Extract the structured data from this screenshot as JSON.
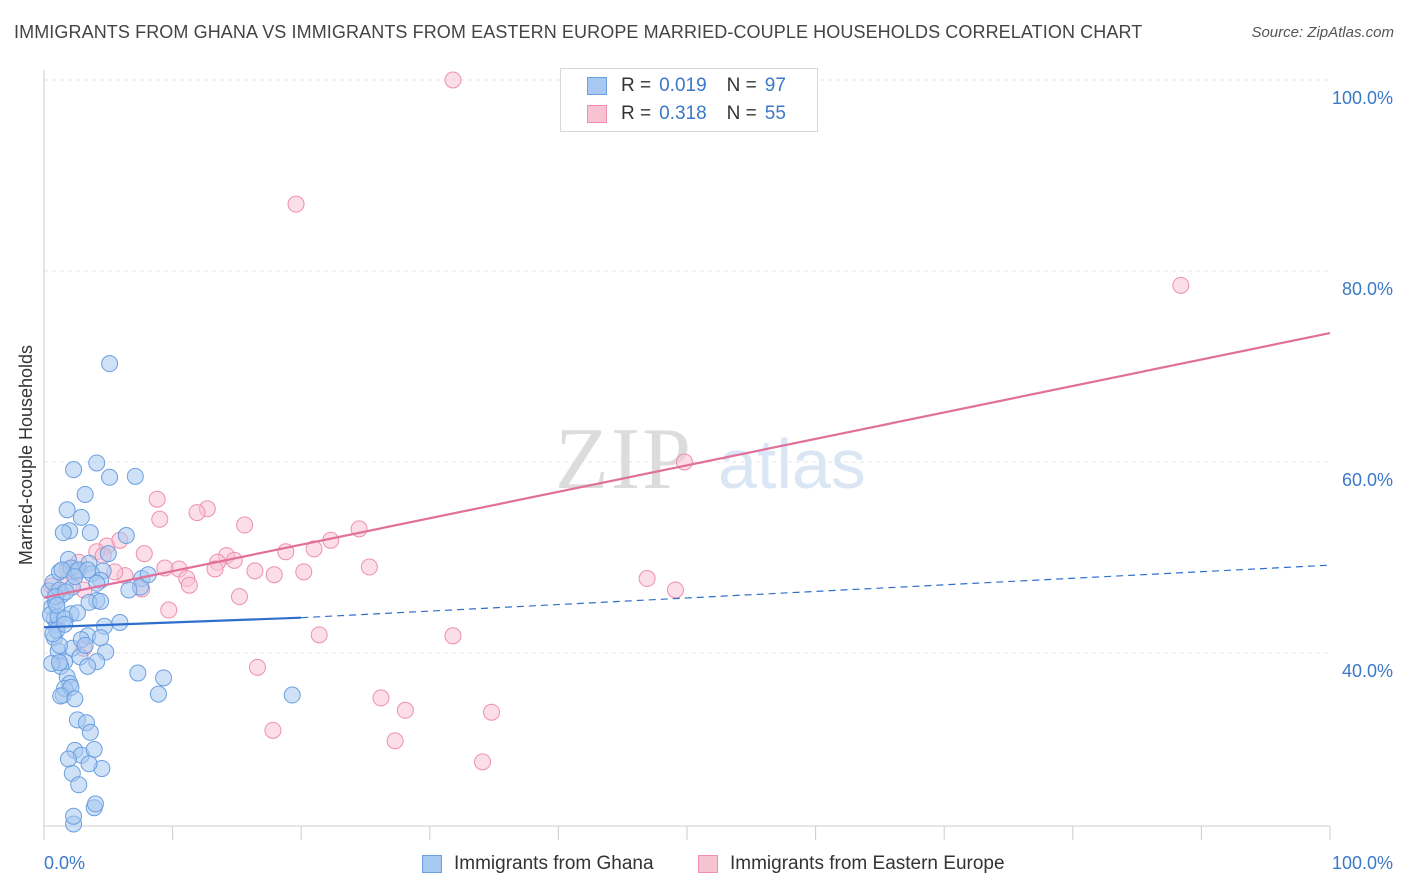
{
  "title": "IMMIGRANTS FROM GHANA VS IMMIGRANTS FROM EASTERN EUROPE MARRIED-COUPLE HOUSEHOLDS CORRELATION CHART",
  "source": "Source: ZipAtlas.com",
  "watermark": {
    "part1": "ZIP",
    "part2": "atlas"
  },
  "legend": {
    "r_label": "R =",
    "n_label": "N =",
    "rows": [
      {
        "r": "0.019",
        "n": "97",
        "color": "#8ab4e8"
      },
      {
        "r": "0.318",
        "n": "55",
        "color": "#f4a3bd"
      }
    ]
  },
  "colors": {
    "ghana_fill": "#a7c8f0",
    "ghana_stroke": "#6a9fe0",
    "ghana_line": "#2f6fcb",
    "ee_fill": "#f7c3d3",
    "ee_stroke": "#ee8fb0",
    "ee_line": "#e0709a",
    "axis_label": "#3b78c7",
    "grid": "#e4e4e4"
  },
  "chart_data": {
    "type": "scatter",
    "title": "IMMIGRANTS FROM GHANA VS IMMIGRANTS FROM EASTERN EUROPE MARRIED-COUPLE HOUSEHOLDS CORRELATION CHART",
    "xlabel": "",
    "ylabel": "Married-couple Households",
    "xlim": [
      0,
      100
    ],
    "ylim": [
      20,
      102
    ],
    "x_tick_labels": [
      "0.0%",
      "100.0%"
    ],
    "y_ticks": [
      40,
      60,
      80,
      100
    ],
    "y_tick_labels": [
      "40.0%",
      "60.0%",
      "80.0%",
      "100.0%"
    ],
    "grid": true,
    "legend_position": "bottom",
    "series": [
      {
        "name": "Immigrants from Ghana",
        "r": 0.019,
        "n": 97,
        "trend": {
          "x": [
            0,
            20
          ],
          "y": [
            42.7,
            43.7
          ]
        },
        "trend_dashed": {
          "x": [
            20,
            100
          ],
          "y": [
            43.7,
            49.2
          ]
        },
        "points": [
          [
            0.4,
            46.5
          ],
          [
            0.6,
            44.8
          ],
          [
            0.8,
            43.6
          ],
          [
            1.0,
            42.9
          ],
          [
            0.7,
            47.4
          ],
          [
            0.9,
            45.3
          ],
          [
            1.2,
            48.5
          ],
          [
            0.5,
            44.0
          ],
          [
            1.4,
            46.1
          ],
          [
            0.8,
            41.6
          ],
          [
            1.1,
            40.2
          ],
          [
            1.6,
            39.1
          ],
          [
            1.3,
            38.6
          ],
          [
            0.6,
            38.9
          ],
          [
            1.8,
            37.5
          ],
          [
            2.0,
            36.8
          ],
          [
            1.5,
            35.6
          ],
          [
            2.6,
            33.0
          ],
          [
            3.3,
            32.7
          ],
          [
            3.6,
            31.7
          ],
          [
            2.4,
            29.8
          ],
          [
            2.9,
            29.3
          ],
          [
            3.9,
            29.9
          ],
          [
            1.9,
            28.9
          ],
          [
            2.2,
            27.4
          ],
          [
            2.7,
            26.2
          ],
          [
            4.5,
            27.9
          ],
          [
            3.5,
            28.4
          ],
          [
            3.9,
            23.8
          ],
          [
            4.0,
            24.2
          ],
          [
            2.3,
            22.1
          ],
          [
            2.3,
            22.9
          ],
          [
            2.3,
            59.2
          ],
          [
            4.1,
            59.9
          ],
          [
            5.1,
            58.4
          ],
          [
            3.2,
            56.6
          ],
          [
            1.8,
            55.0
          ],
          [
            2.9,
            54.2
          ],
          [
            2.0,
            52.8
          ],
          [
            1.5,
            52.6
          ],
          [
            3.6,
            52.6
          ],
          [
            6.4,
            52.3
          ],
          [
            5.0,
            50.4
          ],
          [
            3.5,
            49.4
          ],
          [
            1.9,
            49.8
          ],
          [
            2.5,
            48.6
          ],
          [
            4.6,
            48.6
          ],
          [
            2.1,
            48.9
          ],
          [
            1.4,
            48.7
          ],
          [
            2.7,
            48.7
          ],
          [
            3.7,
            48.3
          ],
          [
            4.4,
            47.6
          ],
          [
            2.2,
            46.9
          ],
          [
            4.1,
            47.3
          ],
          [
            7.6,
            47.8
          ],
          [
            7.5,
            46.9
          ],
          [
            4.1,
            45.5
          ],
          [
            3.5,
            45.3
          ],
          [
            4.4,
            45.4
          ],
          [
            2.1,
            44.1
          ],
          [
            1.1,
            43.8
          ],
          [
            1.6,
            43.6
          ],
          [
            5.9,
            43.2
          ],
          [
            4.7,
            42.8
          ],
          [
            1.0,
            42.4
          ],
          [
            3.4,
            41.8
          ],
          [
            2.2,
            40.5
          ],
          [
            4.8,
            40.1
          ],
          [
            1.2,
            40.8
          ],
          [
            2.8,
            39.6
          ],
          [
            4.1,
            39.1
          ],
          [
            3.4,
            38.6
          ],
          [
            1.2,
            39.0
          ],
          [
            7.3,
            37.9
          ],
          [
            9.3,
            37.4
          ],
          [
            1.6,
            36.3
          ],
          [
            2.1,
            36.4
          ],
          [
            8.9,
            35.7
          ],
          [
            1.3,
            35.5
          ],
          [
            2.4,
            35.2
          ],
          [
            19.3,
            35.6
          ],
          [
            5.1,
            70.3
          ],
          [
            7.1,
            58.5
          ],
          [
            8.1,
            48.2
          ],
          [
            6.6,
            46.6
          ],
          [
            3.4,
            48.7
          ],
          [
            1.2,
            46.6
          ],
          [
            0.9,
            45.9
          ],
          [
            1.7,
            46.4
          ],
          [
            2.4,
            48.0
          ],
          [
            1.6,
            43.0
          ],
          [
            2.9,
            41.4
          ],
          [
            4.4,
            41.6
          ],
          [
            0.7,
            42.0
          ],
          [
            1.0,
            45.0
          ],
          [
            2.6,
            44.2
          ],
          [
            3.2,
            40.8
          ]
        ]
      },
      {
        "name": "Immigrants from Eastern Europe",
        "r": 0.318,
        "n": 55,
        "trend": {
          "x": [
            0,
            100
          ],
          "y": [
            45.8,
            73.5
          ]
        },
        "points": [
          [
            31.8,
            100.0
          ],
          [
            47.5,
            100.0
          ],
          [
            19.6,
            87.0
          ],
          [
            88.4,
            78.5
          ],
          [
            49.8,
            60.0
          ],
          [
            8.8,
            56.1
          ],
          [
            12.7,
            55.1
          ],
          [
            11.9,
            54.7
          ],
          [
            9.0,
            54.0
          ],
          [
            15.6,
            53.4
          ],
          [
            24.5,
            53.0
          ],
          [
            22.3,
            51.8
          ],
          [
            21.0,
            50.9
          ],
          [
            18.8,
            50.6
          ],
          [
            7.8,
            50.4
          ],
          [
            14.2,
            50.2
          ],
          [
            13.5,
            49.5
          ],
          [
            14.8,
            49.7
          ],
          [
            10.5,
            48.8
          ],
          [
            13.3,
            48.8
          ],
          [
            16.4,
            48.6
          ],
          [
            20.2,
            48.5
          ],
          [
            25.3,
            49.0
          ],
          [
            17.9,
            48.2
          ],
          [
            6.3,
            48.1
          ],
          [
            11.1,
            47.8
          ],
          [
            4.9,
            51.2
          ],
          [
            5.9,
            51.8
          ],
          [
            4.1,
            50.6
          ],
          [
            2.7,
            49.5
          ],
          [
            2.5,
            48.4
          ],
          [
            1.7,
            47.3
          ],
          [
            0.6,
            47.0
          ],
          [
            0.9,
            46.3
          ],
          [
            3.1,
            46.6
          ],
          [
            11.3,
            47.1
          ],
          [
            46.9,
            47.8
          ],
          [
            49.1,
            46.6
          ],
          [
            7.6,
            46.7
          ],
          [
            15.2,
            45.9
          ],
          [
            9.7,
            44.5
          ],
          [
            21.4,
            41.9
          ],
          [
            31.8,
            41.8
          ],
          [
            16.6,
            38.5
          ],
          [
            26.2,
            35.3
          ],
          [
            28.1,
            34.0
          ],
          [
            27.3,
            30.8
          ],
          [
            17.8,
            31.9
          ],
          [
            34.8,
            33.8
          ],
          [
            34.1,
            28.6
          ],
          [
            3.1,
            40.5
          ],
          [
            4.6,
            50.2
          ],
          [
            1.8,
            48.7
          ],
          [
            5.5,
            48.5
          ],
          [
            9.4,
            48.9
          ]
        ]
      }
    ]
  }
}
